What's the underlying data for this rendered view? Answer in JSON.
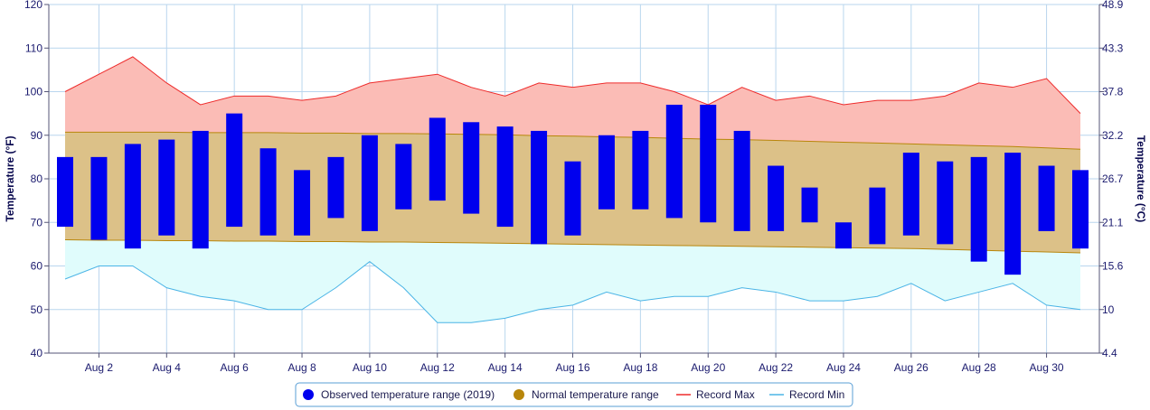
{
  "chart_data": {
    "type": "bar",
    "xlabel": "",
    "ylabel_left": "Temperature (°F)",
    "ylabel_right": "Temperature (°C)",
    "ylim": [
      40,
      120
    ],
    "left_ticks": [
      "40",
      "50",
      "60",
      "70",
      "80",
      "90",
      "100",
      "110",
      "120"
    ],
    "right_ticks": [
      "4.4",
      "10",
      "15.6",
      "21.1",
      "26.7",
      "32.2",
      "37.8",
      "43.3",
      "48.9"
    ],
    "x_tick_labels": [
      "Aug 2",
      "Aug 4",
      "Aug 6",
      "Aug 8",
      "Aug 10",
      "Aug 12",
      "Aug 14",
      "Aug 16",
      "Aug 18",
      "Aug 20",
      "Aug 22",
      "Aug 24",
      "Aug 26",
      "Aug 28",
      "Aug 30"
    ],
    "days": [
      1,
      2,
      3,
      4,
      5,
      6,
      7,
      8,
      9,
      10,
      11,
      12,
      13,
      14,
      15,
      16,
      17,
      18,
      19,
      20,
      21,
      22,
      23,
      24,
      25,
      26,
      27,
      28,
      29,
      30,
      31
    ],
    "series": [
      {
        "name": "Observed temperature range (2019)",
        "color": "#0000ee",
        "low": [
          69,
          66,
          64,
          67,
          64,
          69,
          67,
          67,
          71,
          68,
          73,
          75,
          72,
          69,
          65,
          67,
          73,
          73,
          71,
          70,
          68,
          68,
          70,
          64,
          65,
          67,
          65,
          61,
          58,
          68,
          64
        ],
        "high": [
          85,
          85,
          88,
          89,
          91,
          95,
          87,
          82,
          85,
          90,
          88,
          94,
          93,
          92,
          91,
          84,
          90,
          91,
          97,
          97,
          91,
          83,
          78,
          70,
          78,
          86,
          84,
          85,
          86,
          83,
          82
        ]
      },
      {
        "name": "Normal temperature range",
        "color": "#b8860b",
        "fill": "#dcc188",
        "low": [
          66,
          65.9,
          65.9,
          65.8,
          65.8,
          65.7,
          65.7,
          65.6,
          65.6,
          65.5,
          65.5,
          65.4,
          65.3,
          65.2,
          65.1,
          65,
          64.9,
          64.8,
          64.7,
          64.6,
          64.5,
          64.4,
          64.3,
          64.2,
          64.1,
          64,
          63.8,
          63.6,
          63.4,
          63.2,
          63
        ],
        "high": [
          90.7,
          90.7,
          90.7,
          90.7,
          90.6,
          90.6,
          90.6,
          90.5,
          90.5,
          90.4,
          90.4,
          90.3,
          90.2,
          90.1,
          89.9,
          89.8,
          89.6,
          89.5,
          89.3,
          89.1,
          89,
          88.8,
          88.6,
          88.4,
          88.2,
          88,
          87.8,
          87.6,
          87.4,
          87.1,
          86.8
        ]
      },
      {
        "name": "Record Max",
        "color": "#ee2b2b",
        "fill": "#fbbcb6",
        "values": [
          100,
          104,
          108,
          102,
          97,
          99,
          99,
          98,
          99,
          102,
          103,
          104,
          101,
          99,
          102,
          101,
          102,
          102,
          100,
          97,
          101,
          98,
          99,
          97,
          98,
          98,
          99,
          102,
          101,
          103,
          95
        ]
      },
      {
        "name": "Record Min",
        "color": "#4ab4e6",
        "fill": "#e0fcfc",
        "values": [
          57,
          60,
          60,
          55,
          53,
          52,
          50,
          50,
          55,
          61,
          55,
          47,
          47,
          48,
          50,
          51,
          54,
          52,
          53,
          53,
          55,
          54,
          52,
          52,
          53,
          56,
          52,
          54,
          56,
          51,
          50
        ]
      }
    ],
    "grid": true,
    "legend_position": "bottom"
  },
  "legend": [
    {
      "label": "Observed temperature range (2019)",
      "marker": "circle",
      "color": "#0000ee"
    },
    {
      "label": "Normal temperature range",
      "marker": "circle",
      "color": "#b8860b"
    },
    {
      "label": "Record Max",
      "marker": "line",
      "color": "#ee2b2b"
    },
    {
      "label": "Record Min",
      "marker": "line",
      "color": "#4ab4e6"
    }
  ]
}
